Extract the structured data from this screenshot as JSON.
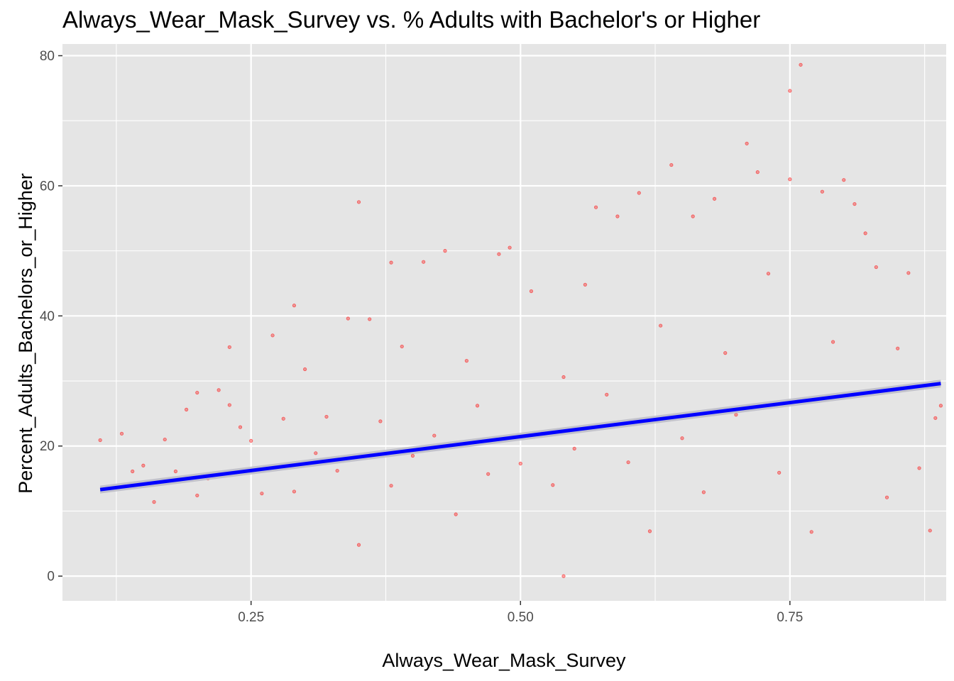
{
  "chart_data": {
    "type": "scatter",
    "title": "Always_Wear_Mask_Survey vs. % Adults with Bachelor's or Higher",
    "xlabel": "Always_Wear_Mask_Survey",
    "ylabel": "Percent_Adults_Bachelors_or_Higher",
    "xlim": [
      0.075,
      0.895
    ],
    "ylim": [
      -3.8,
      81.8
    ],
    "x_ticks": [
      0.25,
      0.5,
      0.75
    ],
    "x_tick_labels": [
      "0.25",
      "0.50",
      "0.75"
    ],
    "y_ticks": [
      0,
      20,
      40,
      60,
      80
    ],
    "y_tick_labels": [
      "0",
      "20",
      "40",
      "60",
      "80"
    ],
    "grid": true,
    "panel_background": "#e5e5e5",
    "grid_color": "#ffffff",
    "point_color": "#ff0000",
    "trend_color": "#0000ff",
    "band_color": "#bdbdc9",
    "points": [
      {
        "x": 0.11,
        "y": 20.9
      },
      {
        "x": 0.13,
        "y": 21.9
      },
      {
        "x": 0.14,
        "y": 16.1
      },
      {
        "x": 0.15,
        "y": 17.0
      },
      {
        "x": 0.16,
        "y": 11.4
      },
      {
        "x": 0.17,
        "y": 21.0
      },
      {
        "x": 0.18,
        "y": 16.1
      },
      {
        "x": 0.19,
        "y": 25.6
      },
      {
        "x": 0.2,
        "y": 28.2
      },
      {
        "x": 0.2,
        "y": 12.4
      },
      {
        "x": 0.21,
        "y": 15.0
      },
      {
        "x": 0.22,
        "y": 28.6
      },
      {
        "x": 0.23,
        "y": 35.2
      },
      {
        "x": 0.23,
        "y": 26.3
      },
      {
        "x": 0.24,
        "y": 22.9
      },
      {
        "x": 0.25,
        "y": 20.8
      },
      {
        "x": 0.26,
        "y": 12.7
      },
      {
        "x": 0.27,
        "y": 37.0
      },
      {
        "x": 0.28,
        "y": 24.2
      },
      {
        "x": 0.29,
        "y": 41.6
      },
      {
        "x": 0.29,
        "y": 13.0
      },
      {
        "x": 0.3,
        "y": 31.8
      },
      {
        "x": 0.31,
        "y": 18.9
      },
      {
        "x": 0.32,
        "y": 24.5
      },
      {
        "x": 0.33,
        "y": 16.2
      },
      {
        "x": 0.34,
        "y": 39.6
      },
      {
        "x": 0.35,
        "y": 57.5
      },
      {
        "x": 0.35,
        "y": 4.8
      },
      {
        "x": 0.36,
        "y": 39.5
      },
      {
        "x": 0.37,
        "y": 23.8
      },
      {
        "x": 0.38,
        "y": 48.2
      },
      {
        "x": 0.38,
        "y": 13.9
      },
      {
        "x": 0.39,
        "y": 35.3
      },
      {
        "x": 0.4,
        "y": 18.5
      },
      {
        "x": 0.41,
        "y": 48.3
      },
      {
        "x": 0.42,
        "y": 21.6
      },
      {
        "x": 0.43,
        "y": 50.0
      },
      {
        "x": 0.44,
        "y": 9.5
      },
      {
        "x": 0.45,
        "y": 33.1
      },
      {
        "x": 0.46,
        "y": 26.2
      },
      {
        "x": 0.47,
        "y": 15.7
      },
      {
        "x": 0.48,
        "y": 49.5
      },
      {
        "x": 0.49,
        "y": 50.5
      },
      {
        "x": 0.5,
        "y": 17.3
      },
      {
        "x": 0.51,
        "y": 43.8
      },
      {
        "x": 0.52,
        "y": 22.0
      },
      {
        "x": 0.53,
        "y": 14.0
      },
      {
        "x": 0.54,
        "y": 30.6
      },
      {
        "x": 0.54,
        "y": 0.0
      },
      {
        "x": 0.55,
        "y": 19.6
      },
      {
        "x": 0.56,
        "y": 44.8
      },
      {
        "x": 0.57,
        "y": 56.7
      },
      {
        "x": 0.58,
        "y": 27.9
      },
      {
        "x": 0.59,
        "y": 55.3
      },
      {
        "x": 0.6,
        "y": 17.5
      },
      {
        "x": 0.61,
        "y": 58.9
      },
      {
        "x": 0.62,
        "y": 6.9
      },
      {
        "x": 0.63,
        "y": 38.5
      },
      {
        "x": 0.64,
        "y": 63.2
      },
      {
        "x": 0.65,
        "y": 21.2
      },
      {
        "x": 0.66,
        "y": 55.3
      },
      {
        "x": 0.67,
        "y": 12.9
      },
      {
        "x": 0.68,
        "y": 58.0
      },
      {
        "x": 0.69,
        "y": 34.3
      },
      {
        "x": 0.7,
        "y": 24.8
      },
      {
        "x": 0.71,
        "y": 66.5
      },
      {
        "x": 0.72,
        "y": 62.1
      },
      {
        "x": 0.73,
        "y": 46.5
      },
      {
        "x": 0.74,
        "y": 15.9
      },
      {
        "x": 0.75,
        "y": 74.6
      },
      {
        "x": 0.75,
        "y": 61.0
      },
      {
        "x": 0.76,
        "y": 78.6
      },
      {
        "x": 0.77,
        "y": 6.8
      },
      {
        "x": 0.78,
        "y": 59.1
      },
      {
        "x": 0.79,
        "y": 36.0
      },
      {
        "x": 0.8,
        "y": 60.9
      },
      {
        "x": 0.81,
        "y": 57.2
      },
      {
        "x": 0.82,
        "y": 52.7
      },
      {
        "x": 0.83,
        "y": 47.5
      },
      {
        "x": 0.84,
        "y": 12.1
      },
      {
        "x": 0.85,
        "y": 35.0
      },
      {
        "x": 0.86,
        "y": 46.6
      },
      {
        "x": 0.87,
        "y": 16.6
      },
      {
        "x": 0.88,
        "y": 7.0
      },
      {
        "x": 0.885,
        "y": 24.3
      },
      {
        "x": 0.89,
        "y": 26.2
      }
    ],
    "trend_line": {
      "x": [
        0.11,
        0.89
      ],
      "y": [
        13.3,
        29.6
      ],
      "band": 0.6
    }
  }
}
